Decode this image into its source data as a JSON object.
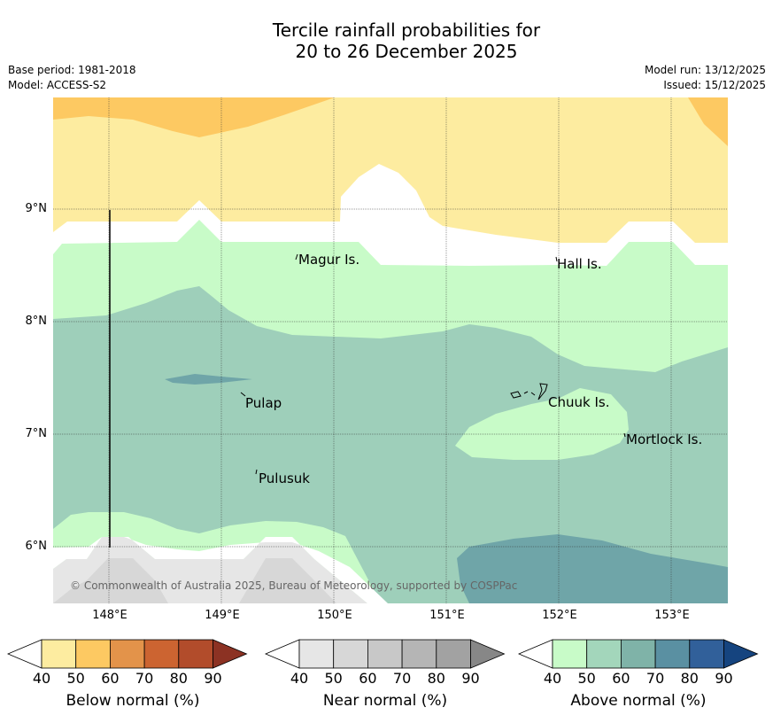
{
  "title": {
    "line1": "Tercile rainfall probabilities for",
    "line2": "20 to 26 December 2025"
  },
  "meta": {
    "base_period": "Base period: 1981-2018",
    "model": "Model: ACCESS-S2",
    "model_run": "Model run: 13/12/2025",
    "issued": "Issued: 15/12/2025"
  },
  "axes": {
    "longitudes": [
      "148°E",
      "149°E",
      "150°E",
      "151°E",
      "152°E",
      "153°E"
    ],
    "latitudes": [
      "9°N",
      "8°N",
      "7°N",
      "6°N"
    ]
  },
  "places": {
    "magur": "Magur Is.",
    "hall": "Hall Is.",
    "pulap": "Pulap",
    "chuuk": "Chuuk Is.",
    "mortlock": "Mortlock Is.",
    "pulusuk": "Pulusuk"
  },
  "copyright": "© Commonwealth of Australia 2025, Bureau of Meteorology, supported by COSPPac",
  "legend": {
    "below": {
      "label": "Below normal (%)",
      "ticks": [
        "40",
        "50",
        "60",
        "70",
        "80",
        "90"
      ],
      "colors": [
        "#fdeca0",
        "#fdc962",
        "#e3934a",
        "#cc6431",
        "#b24c2b",
        "#8c3223"
      ]
    },
    "near": {
      "label": "Near normal (%)",
      "ticks": [
        "40",
        "50",
        "60",
        "70",
        "80",
        "90"
      ],
      "colors": [
        "#e6e6e6",
        "#d7d7d7",
        "#c8c8c8",
        "#b5b5b5",
        "#a2a2a2",
        "#878787"
      ]
    },
    "above": {
      "label": "Above normal (%)",
      "ticks": [
        "40",
        "50",
        "60",
        "70",
        "80",
        "90"
      ],
      "colors": [
        "#c8fbc8",
        "#a3d6bb",
        "#7fb3a8",
        "#5a90a2",
        "#31609a",
        "#15447f"
      ]
    }
  }
}
